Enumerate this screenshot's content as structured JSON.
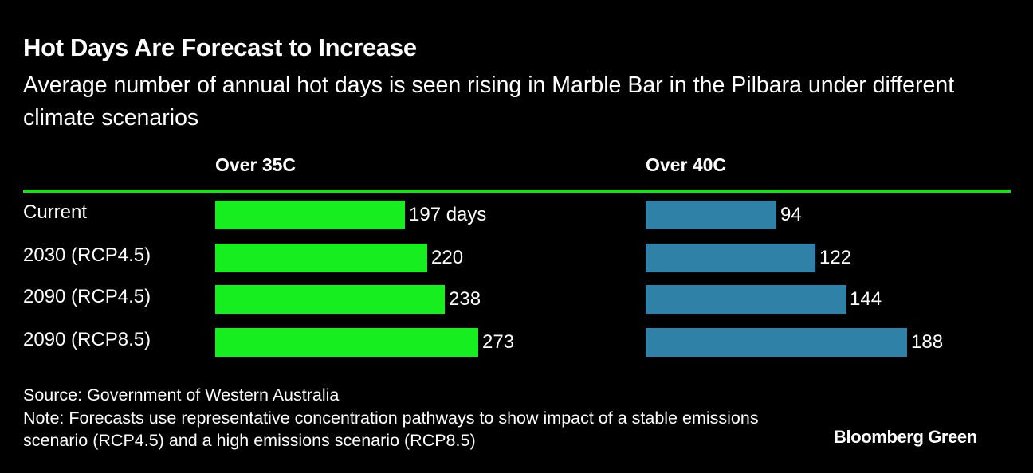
{
  "chart_data": {
    "type": "bar",
    "orientation": "horizontal",
    "title": "Hot Days Are Forecast to Increase",
    "subtitle": "Average number of annual hot days is seen rising in Marble Bar in the Pilbara under different climate scenarios",
    "categories": [
      "Current",
      "2030 (RCP4.5)",
      "2090 (RCP4.5)",
      "2090 (RCP8.5)"
    ],
    "panels": [
      {
        "name": "Over 35C",
        "values": [
          197,
          220,
          238,
          273
        ],
        "labels": [
          "197 days",
          "220",
          "238",
          "273"
        ],
        "color": "#16ee1f",
        "xlim": [
          0,
          273
        ]
      },
      {
        "name": "Over 40C",
        "values": [
          94,
          122,
          144,
          188
        ],
        "labels": [
          "94",
          "122",
          "144",
          "188"
        ],
        "color": "#2f81a8",
        "xlim": [
          0,
          188
        ]
      }
    ],
    "grid": false,
    "legend": "none",
    "source": "Source: Government of Western Australia",
    "note": "Note: Forecasts use representative concentration pathways to show impact of a stable emissions scenario (RCP4.5) and a high emissions scenario (RCP8.5)"
  },
  "brand": "Bloomberg Green",
  "accent_color": "#16e11c"
}
